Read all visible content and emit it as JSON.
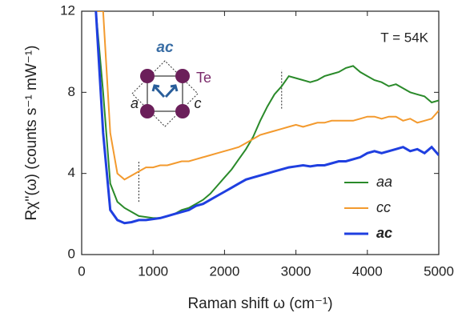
{
  "chart_data": {
    "type": "line",
    "xlabel": "Raman shift ω (cm⁻¹)",
    "ylabel": "Rχ''(ω) (counts s⁻¹ mW⁻¹)",
    "annotations": {
      "temperature": "T = 54K",
      "geometry": "ac",
      "atom": "Te",
      "axis_a": "a",
      "axis_c": "c"
    },
    "x": [
      200,
      300,
      400,
      500,
      600,
      700,
      800,
      900,
      1000,
      1100,
      1200,
      1300,
      1400,
      1500,
      1600,
      1700,
      1800,
      1900,
      2000,
      2100,
      2200,
      2300,
      2400,
      2500,
      2600,
      2700,
      2800,
      2900,
      3000,
      3100,
      3200,
      3300,
      3400,
      3500,
      3600,
      3700,
      3800,
      3900,
      4000,
      4100,
      4200,
      4300,
      4400,
      4500,
      4600,
      4700,
      4800,
      4900,
      5000
    ],
    "series": [
      {
        "name": "aa",
        "color": "#2a8a2a",
        "values": [
          12,
          8,
          3.5,
          2.6,
          2.3,
          2.1,
          1.9,
          1.85,
          1.8,
          1.8,
          1.9,
          2.0,
          2.2,
          2.3,
          2.5,
          2.7,
          3.0,
          3.4,
          3.8,
          4.2,
          4.7,
          5.2,
          5.8,
          6.6,
          7.3,
          7.9,
          8.3,
          8.8,
          8.7,
          8.6,
          8.5,
          8.6,
          8.8,
          8.9,
          9.0,
          9.2,
          9.3,
          9.0,
          8.8,
          8.6,
          8.5,
          8.3,
          8.4,
          8.2,
          8.0,
          7.9,
          7.8,
          7.5,
          7.6
        ]
      },
      {
        "name": "cc",
        "color": "#f39a2e",
        "values": [
          12,
          12,
          6,
          4.0,
          3.7,
          3.9,
          4.1,
          4.3,
          4.3,
          4.4,
          4.4,
          4.5,
          4.6,
          4.6,
          4.7,
          4.8,
          4.9,
          5.0,
          5.1,
          5.2,
          5.3,
          5.5,
          5.7,
          5.9,
          6.0,
          6.1,
          6.2,
          6.3,
          6.4,
          6.3,
          6.4,
          6.5,
          6.5,
          6.6,
          6.6,
          6.6,
          6.6,
          6.7,
          6.8,
          6.8,
          6.7,
          6.8,
          6.8,
          6.6,
          6.7,
          6.5,
          6.6,
          6.7,
          7.1
        ]
      },
      {
        "name": "ac",
        "color": "#1f3fe0",
        "values": [
          12,
          6,
          2.2,
          1.7,
          1.55,
          1.6,
          1.7,
          1.7,
          1.75,
          1.8,
          1.9,
          2.0,
          2.1,
          2.2,
          2.4,
          2.5,
          2.7,
          2.9,
          3.1,
          3.3,
          3.5,
          3.7,
          3.8,
          3.9,
          4.0,
          4.1,
          4.2,
          4.3,
          4.35,
          4.4,
          4.35,
          4.4,
          4.4,
          4.5,
          4.6,
          4.6,
          4.7,
          4.8,
          5.0,
          5.1,
          5.0,
          5.1,
          5.2,
          5.3,
          5.1,
          5.2,
          5.0,
          5.3,
          4.9
        ]
      }
    ],
    "vlines": [
      {
        "x": 800,
        "ymin": 2.6,
        "ymax": 4.6
      },
      {
        "x": 2800,
        "ymin": 7.2,
        "ymax": 9.1
      }
    ],
    "xlim": [
      0,
      5000
    ],
    "xticks": [
      0,
      1000,
      2000,
      3000,
      4000,
      5000
    ],
    "ylim": [
      0,
      12
    ],
    "yticks": [
      0,
      4,
      8,
      12
    ],
    "legend": "lower right"
  }
}
